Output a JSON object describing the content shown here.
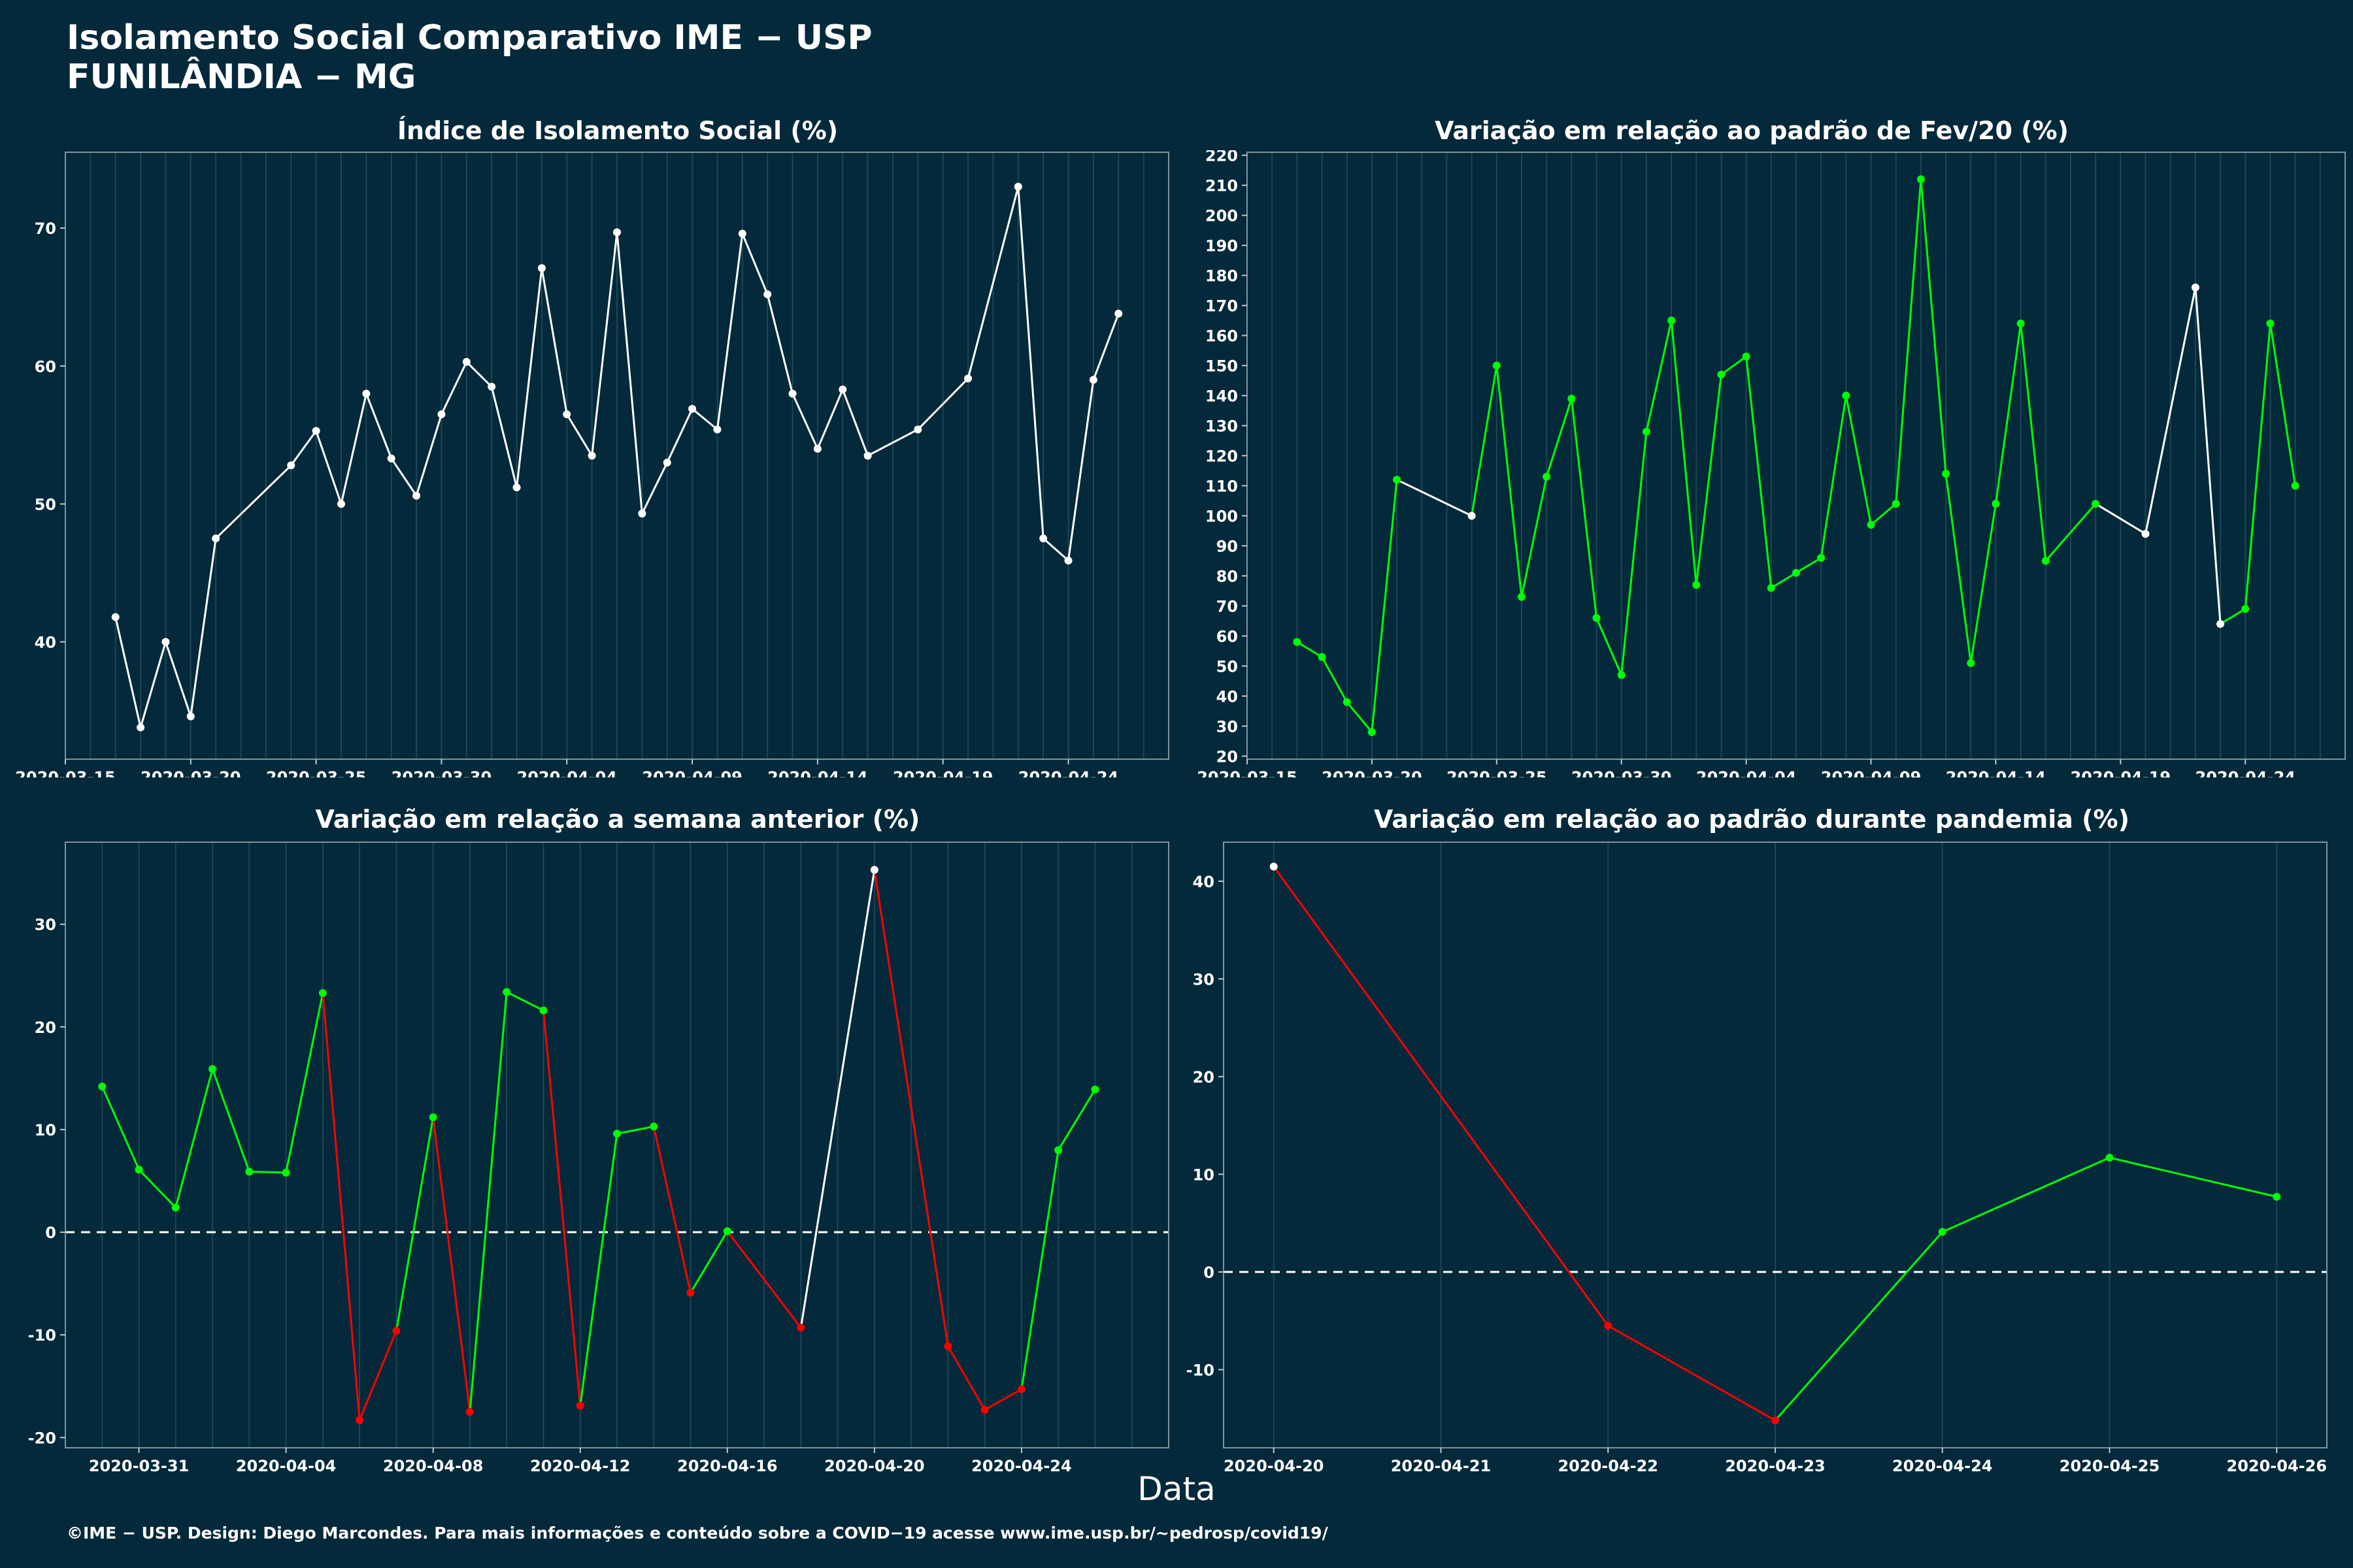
{
  "header": {
    "title": "Isolamento Social Comparativo IME − USP",
    "subtitle": "FUNILÂNDIA − MG"
  },
  "xlabel": "Data",
  "footer": "©IME − USP. Design: Diego Marcondes. Para mais informações e conteúdo sobre a COVID−19 acesse www.ime.usp.br/~pedrosp/covid19/",
  "colors": {
    "background": "#03293A",
    "white": "#FFFFFF",
    "increase": "#00FF00",
    "decrease": "#FF0000",
    "grid": "#1F4654"
  },
  "chart_data": [
    {
      "id": "p1",
      "type": "line",
      "title": "Índice de Isolamento Social (%)",
      "x": [
        "2020-03-17",
        "2020-03-18",
        "2020-03-19",
        "2020-03-20",
        "2020-03-21",
        "2020-03-24",
        "2020-03-25",
        "2020-03-26",
        "2020-03-27",
        "2020-03-28",
        "2020-03-29",
        "2020-03-30",
        "2020-03-31",
        "2020-04-01",
        "2020-04-02",
        "2020-04-03",
        "2020-04-04",
        "2020-04-05",
        "2020-04-06",
        "2020-04-07",
        "2020-04-08",
        "2020-04-09",
        "2020-04-10",
        "2020-04-11",
        "2020-04-12",
        "2020-04-13",
        "2020-04-14",
        "2020-04-15",
        "2020-04-16",
        "2020-04-18",
        "2020-04-20",
        "2020-04-22",
        "2020-04-23",
        "2020-04-24",
        "2020-04-25",
        "2020-04-26"
      ],
      "y": [
        41.8,
        33.8,
        40.0,
        34.6,
        47.5,
        52.8,
        55.3,
        50.0,
        58.0,
        53.3,
        50.6,
        56.5,
        60.3,
        58.5,
        51.2,
        67.1,
        56.5,
        53.5,
        69.7,
        49.3,
        53.0,
        56.9,
        55.4,
        69.6,
        65.2,
        58.0,
        54.0,
        58.3,
        53.5,
        55.4,
        59.1,
        73.0,
        47.5,
        45.9,
        59.0,
        63.8
      ],
      "colors": [
        "white",
        "white",
        "white",
        "white",
        "white",
        "white",
        "white",
        "white",
        "white",
        "white",
        "white",
        "white",
        "white",
        "white",
        "white",
        "white",
        "white",
        "white",
        "white",
        "white",
        "white",
        "white",
        "white",
        "white",
        "white",
        "white",
        "white",
        "white",
        "white",
        "white",
        "white",
        "white",
        "white",
        "white",
        "white",
        "white"
      ],
      "xlim": [
        "2020-03-15",
        "2020-04-28"
      ],
      "ylim": [
        31.5,
        75.5
      ],
      "xticks": [
        "2020-03-15",
        "2020-03-20",
        "2020-03-25",
        "2020-03-30",
        "2020-04-04",
        "2020-04-09",
        "2020-04-14",
        "2020-04-19",
        "2020-04-24"
      ],
      "yticks": [
        40,
        50,
        60,
        70
      ],
      "zero_line": false
    },
    {
      "id": "p2",
      "type": "line",
      "title": "Variação em relação ao padrão de Fev/20 (%)",
      "x": [
        "2020-03-17",
        "2020-03-18",
        "2020-03-19",
        "2020-03-20",
        "2020-03-21",
        "2020-03-24",
        "2020-03-25",
        "2020-03-26",
        "2020-03-27",
        "2020-03-28",
        "2020-03-29",
        "2020-03-30",
        "2020-03-31",
        "2020-04-01",
        "2020-04-02",
        "2020-04-03",
        "2020-04-04",
        "2020-04-05",
        "2020-04-06",
        "2020-04-07",
        "2020-04-08",
        "2020-04-09",
        "2020-04-10",
        "2020-04-11",
        "2020-04-12",
        "2020-04-13",
        "2020-04-14",
        "2020-04-15",
        "2020-04-16",
        "2020-04-18",
        "2020-04-20",
        "2020-04-22",
        "2020-04-23",
        "2020-04-24",
        "2020-04-25",
        "2020-04-26"
      ],
      "y": [
        58,
        53,
        38,
        28,
        112,
        100,
        150,
        73,
        113,
        139,
        66,
        47,
        128,
        165,
        77,
        147,
        153,
        76,
        81,
        86,
        140,
        97,
        104,
        212,
        114,
        51,
        104,
        164,
        85,
        104,
        94,
        176,
        64,
        69,
        164,
        110
      ],
      "colors": [
        "increase",
        "increase",
        "increase",
        "increase",
        "increase",
        "white",
        "increase",
        "increase",
        "increase",
        "increase",
        "increase",
        "increase",
        "increase",
        "increase",
        "increase",
        "increase",
        "increase",
        "increase",
        "increase",
        "increase",
        "increase",
        "increase",
        "increase",
        "increase",
        "increase",
        "increase",
        "increase",
        "increase",
        "increase",
        "increase",
        "white",
        "white",
        "white",
        "increase",
        "increase",
        "increase"
      ],
      "xlim": [
        "2020-03-15",
        "2020-04-28"
      ],
      "ylim": [
        19,
        221
      ],
      "xticks": [
        "2020-03-15",
        "2020-03-20",
        "2020-03-25",
        "2020-03-30",
        "2020-04-04",
        "2020-04-09",
        "2020-04-14",
        "2020-04-19",
        "2020-04-24"
      ],
      "yticks": [
        20,
        30,
        40,
        50,
        60,
        70,
        80,
        90,
        100,
        110,
        120,
        130,
        140,
        150,
        160,
        170,
        180,
        190,
        200,
        210,
        220
      ],
      "zero_line": false
    },
    {
      "id": "p3",
      "type": "line",
      "title": "Variação em relação a semana anterior (%)",
      "x": [
        "2020-03-30",
        "2020-03-31",
        "2020-04-01",
        "2020-04-02",
        "2020-04-03",
        "2020-04-04",
        "2020-04-05",
        "2020-04-06",
        "2020-04-07",
        "2020-04-08",
        "2020-04-09",
        "2020-04-10",
        "2020-04-11",
        "2020-04-12",
        "2020-04-13",
        "2020-04-14",
        "2020-04-15",
        "2020-04-16",
        "2020-04-18",
        "2020-04-20",
        "2020-04-22",
        "2020-04-23",
        "2020-04-24",
        "2020-04-25",
        "2020-04-26"
      ],
      "y": [
        14.2,
        6.1,
        2.4,
        15.9,
        5.9,
        5.8,
        23.3,
        -18.3,
        -9.6,
        11.2,
        -17.5,
        23.4,
        21.6,
        -16.9,
        9.6,
        10.3,
        -5.9,
        0.1,
        -9.3,
        35.3,
        -11.1,
        -17.3,
        -15.3,
        8.0,
        13.9
      ],
      "colors": [
        "increase",
        "increase",
        "increase",
        "increase",
        "increase",
        "increase",
        "increase",
        "decrease",
        "decrease",
        "increase",
        "decrease",
        "increase",
        "increase",
        "decrease",
        "increase",
        "increase",
        "decrease",
        "increase",
        "decrease",
        "white",
        "decrease",
        "decrease",
        "decrease",
        "increase",
        "increase"
      ],
      "xlim": [
        "2020-03-29",
        "2020-04-28"
      ],
      "ylim": [
        -21,
        38
      ],
      "xticks": [
        "2020-03-31",
        "2020-04-04",
        "2020-04-08",
        "2020-04-12",
        "2020-04-16",
        "2020-04-20",
        "2020-04-24"
      ],
      "yticks": [
        -20,
        -10,
        0,
        10,
        20,
        30
      ],
      "zero_line": true
    },
    {
      "id": "p4",
      "type": "line",
      "title": "Variação em relação ao padrão durante pandemia (%)",
      "x": [
        "2020-04-20",
        "2020-04-22",
        "2020-04-23",
        "2020-04-24",
        "2020-04-25",
        "2020-04-26"
      ],
      "y": [
        41.5,
        -5.5,
        -15.2,
        4.1,
        11.7,
        7.7
      ],
      "colors": [
        "white",
        "decrease",
        "decrease",
        "increase",
        "increase",
        "increase"
      ],
      "xlim": [
        "2020-04-19.7",
        "2020-04-26.3"
      ],
      "ylim": [
        -18,
        44
      ],
      "xticks": [
        "2020-04-20",
        "2020-04-21",
        "2020-04-22",
        "2020-04-23",
        "2020-04-24",
        "2020-04-25",
        "2020-04-26"
      ],
      "xtick_positions": [
        0,
        1,
        2,
        3,
        4,
        5,
        6
      ],
      "yticks": [
        -10,
        0,
        10,
        20,
        30,
        40
      ],
      "zero_line": true
    }
  ]
}
